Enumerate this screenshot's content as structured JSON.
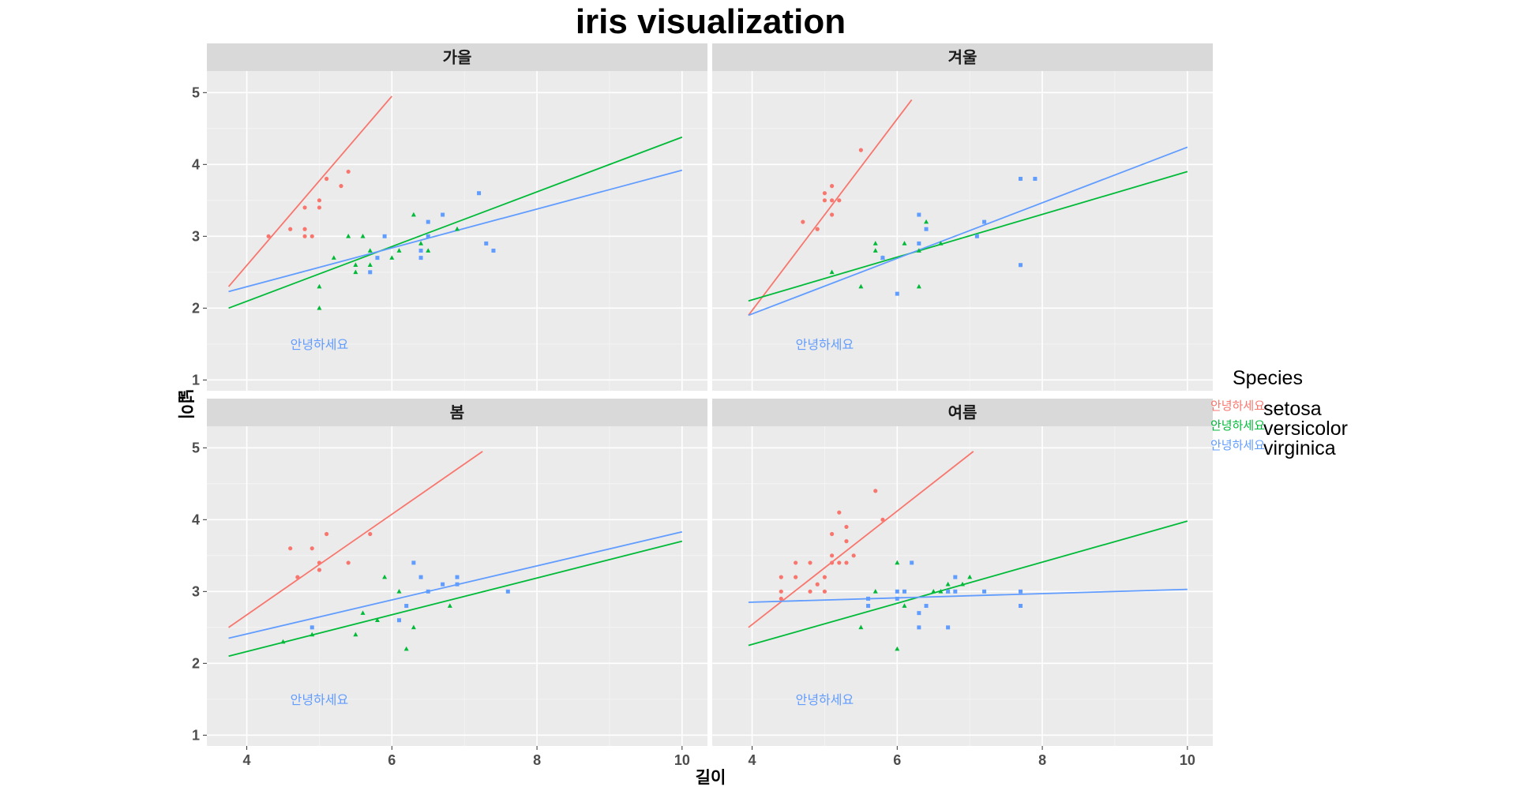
{
  "chart_data": {
    "type": "scatter",
    "title": "iris visualization",
    "xlabel": "길이",
    "ylabel": "넓이",
    "xlim": [
      3.45,
      10.35
    ],
    "ylim": [
      0.85,
      5.3
    ],
    "x_ticks": [
      4,
      6,
      8,
      10
    ],
    "y_ticks": [
      1,
      2,
      3,
      4,
      5
    ],
    "annotation": "안녕하세요",
    "legend": {
      "title": "Species",
      "key_glyph_text": "안녕하세요",
      "entries": [
        {
          "name": "setosa",
          "color": "#F8766D"
        },
        {
          "name": "versicolor",
          "color": "#00BA38"
        },
        {
          "name": "virginica",
          "color": "#619CFF"
        }
      ]
    },
    "panels": [
      {
        "label": "가을",
        "points": {
          "setosa": [
            [
              4.3,
              3.0
            ],
            [
              4.6,
              3.1
            ],
            [
              4.8,
              3.4
            ],
            [
              4.8,
              3.1
            ],
            [
              4.8,
              3.0
            ],
            [
              4.9,
              3.0
            ],
            [
              5.0,
              3.5
            ],
            [
              5.0,
              3.4
            ],
            [
              5.1,
              3.8
            ],
            [
              5.3,
              3.7
            ],
            [
              5.4,
              3.9
            ]
          ],
          "versicolor": [
            [
              5.0,
              2.3
            ],
            [
              5.0,
              2.0
            ],
            [
              5.2,
              2.7
            ],
            [
              5.4,
              3.0
            ],
            [
              5.5,
              2.6
            ],
            [
              5.5,
              2.5
            ],
            [
              5.6,
              3.0
            ],
            [
              5.7,
              2.8
            ],
            [
              5.7,
              2.6
            ],
            [
              6.0,
              2.7
            ],
            [
              6.1,
              2.8
            ],
            [
              6.3,
              3.3
            ],
            [
              6.4,
              2.9
            ],
            [
              6.5,
              2.8
            ],
            [
              6.9,
              3.1
            ]
          ],
          "virginica": [
            [
              5.7,
              2.5
            ],
            [
              5.8,
              2.7
            ],
            [
              5.9,
              3.0
            ],
            [
              6.4,
              2.8
            ],
            [
              6.4,
              2.7
            ],
            [
              6.5,
              3.0
            ],
            [
              6.5,
              3.2
            ],
            [
              6.7,
              3.3
            ],
            [
              7.2,
              3.6
            ],
            [
              7.3,
              2.9
            ],
            [
              7.4,
              2.8
            ]
          ]
        },
        "fits": {
          "setosa": [
            [
              3.75,
              2.3
            ],
            [
              6.0,
              4.95
            ]
          ],
          "versicolor": [
            [
              3.75,
              2.0
            ],
            [
              10.0,
              4.38
            ]
          ],
          "virginica": [
            [
              3.75,
              2.23
            ],
            [
              10.0,
              3.92
            ]
          ]
        }
      },
      {
        "label": "겨울",
        "points": {
          "setosa": [
            [
              4.7,
              3.2
            ],
            [
              4.9,
              3.1
            ],
            [
              5.0,
              3.6
            ],
            [
              5.0,
              3.5
            ],
            [
              5.1,
              3.5
            ],
            [
              5.1,
              3.7
            ],
            [
              5.1,
              3.3
            ],
            [
              5.2,
              3.5
            ],
            [
              5.5,
              4.2
            ]
          ],
          "versicolor": [
            [
              5.1,
              2.5
            ],
            [
              5.5,
              2.3
            ],
            [
              5.7,
              2.9
            ],
            [
              5.7,
              2.8
            ],
            [
              5.8,
              2.7
            ],
            [
              6.1,
              2.9
            ],
            [
              6.3,
              2.3
            ],
            [
              6.3,
              2.8
            ],
            [
              6.4,
              3.2
            ],
            [
              6.6,
              2.9
            ]
          ],
          "virginica": [
            [
              5.8,
              2.7
            ],
            [
              6.0,
              2.2
            ],
            [
              6.3,
              3.3
            ],
            [
              6.3,
              2.9
            ],
            [
              6.4,
              3.1
            ],
            [
              7.1,
              3.0
            ],
            [
              7.2,
              3.2
            ],
            [
              7.7,
              3.8
            ],
            [
              7.7,
              2.6
            ],
            [
              7.9,
              3.8
            ]
          ]
        },
        "fits": {
          "setosa": [
            [
              3.95,
              1.9
            ],
            [
              6.2,
              4.9
            ]
          ],
          "versicolor": [
            [
              3.95,
              2.1
            ],
            [
              10.0,
              3.9
            ]
          ],
          "virginica": [
            [
              3.95,
              1.9
            ],
            [
              10.0,
              4.24
            ]
          ]
        }
      },
      {
        "label": "봄",
        "points": {
          "setosa": [
            [
              4.6,
              3.6
            ],
            [
              4.7,
              3.2
            ],
            [
              4.9,
              3.6
            ],
            [
              5.0,
              3.4
            ],
            [
              5.0,
              3.3
            ],
            [
              5.1,
              3.8
            ],
            [
              5.4,
              3.4
            ],
            [
              5.7,
              3.8
            ]
          ],
          "versicolor": [
            [
              4.5,
              2.3
            ],
            [
              4.9,
              2.4
            ],
            [
              5.5,
              2.4
            ],
            [
              5.6,
              2.7
            ],
            [
              5.8,
              2.6
            ],
            [
              5.9,
              3.2
            ],
            [
              6.1,
              3.0
            ],
            [
              6.2,
              2.2
            ],
            [
              6.3,
              2.5
            ],
            [
              6.8,
              2.8
            ]
          ],
          "virginica": [
            [
              4.9,
              2.5
            ],
            [
              6.1,
              2.6
            ],
            [
              6.2,
              2.8
            ],
            [
              6.3,
              3.4
            ],
            [
              6.4,
              3.2
            ],
            [
              6.5,
              3.0
            ],
            [
              6.7,
              3.1
            ],
            [
              6.9,
              3.2
            ],
            [
              6.9,
              3.1
            ],
            [
              7.6,
              3.0
            ]
          ]
        },
        "fits": {
          "setosa": [
            [
              3.75,
              2.5
            ],
            [
              7.25,
              4.95
            ]
          ],
          "versicolor": [
            [
              3.75,
              2.1
            ],
            [
              10.0,
              3.7
            ]
          ],
          "virginica": [
            [
              3.75,
              2.35
            ],
            [
              10.0,
              3.83
            ]
          ]
        }
      },
      {
        "label": "여름",
        "points": {
          "setosa": [
            [
              4.4,
              3.2
            ],
            [
              4.4,
              3.0
            ],
            [
              4.4,
              2.9
            ],
            [
              4.6,
              3.4
            ],
            [
              4.6,
              3.2
            ],
            [
              4.8,
              3.4
            ],
            [
              4.8,
              3.0
            ],
            [
              4.9,
              3.1
            ],
            [
              5.0,
              3.2
            ],
            [
              5.0,
              3.0
            ],
            [
              5.1,
              3.8
            ],
            [
              5.1,
              3.5
            ],
            [
              5.1,
              3.4
            ],
            [
              5.2,
              4.1
            ],
            [
              5.2,
              3.4
            ],
            [
              5.3,
              3.7
            ],
            [
              5.3,
              3.9
            ],
            [
              5.3,
              3.4
            ],
            [
              5.4,
              3.5
            ],
            [
              5.7,
              4.4
            ],
            [
              5.8,
              4.0
            ]
          ],
          "versicolor": [
            [
              5.5,
              2.5
            ],
            [
              5.7,
              3.0
            ],
            [
              6.0,
              3.4
            ],
            [
              6.0,
              2.2
            ],
            [
              6.1,
              2.8
            ],
            [
              6.5,
              3.0
            ],
            [
              6.6,
              3.0
            ],
            [
              6.7,
              3.1
            ],
            [
              6.7,
              3.0
            ],
            [
              6.9,
              3.1
            ],
            [
              7.0,
              3.2
            ]
          ],
          "virginica": [
            [
              5.6,
              2.8
            ],
            [
              5.6,
              2.9
            ],
            [
              6.0,
              3.0
            ],
            [
              6.0,
              2.9
            ],
            [
              6.1,
              3.0
            ],
            [
              6.2,
              3.4
            ],
            [
              6.3,
              2.7
            ],
            [
              6.3,
              2.5
            ],
            [
              6.4,
              2.8
            ],
            [
              6.7,
              2.5
            ],
            [
              6.7,
              3.0
            ],
            [
              6.8,
              3.2
            ],
            [
              6.8,
              3.0
            ],
            [
              7.2,
              3.0
            ],
            [
              7.7,
              3.0
            ],
            [
              7.7,
              2.8
            ]
          ]
        },
        "fits": {
          "setosa": [
            [
              3.95,
              2.5
            ],
            [
              7.05,
              4.95
            ]
          ],
          "versicolor": [
            [
              3.95,
              2.25
            ],
            [
              10.0,
              3.98
            ]
          ],
          "virginica": [
            [
              3.95,
              2.85
            ],
            [
              10.0,
              3.03
            ]
          ]
        }
      }
    ]
  }
}
